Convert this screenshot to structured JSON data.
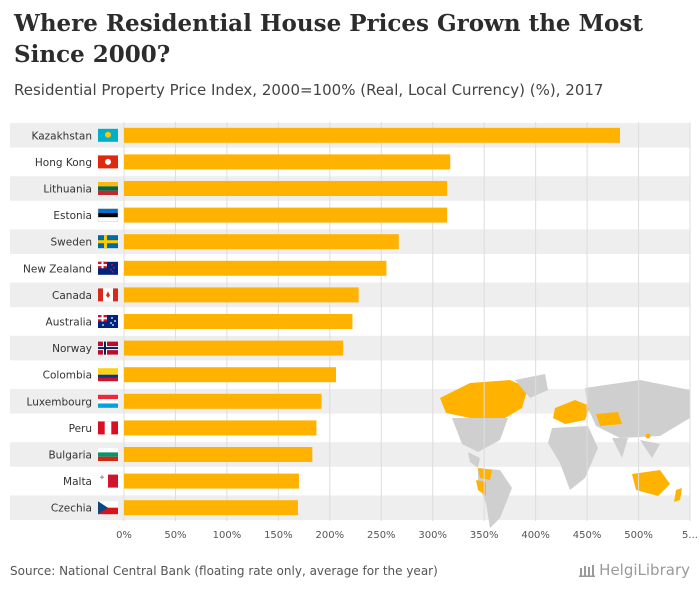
{
  "title": "Where Residential House Prices Grown the Most Since 2000?",
  "subtitle": "Residential Property Price Index, 2000=100% (Real, Local Currency) (%), 2017",
  "source": "Source: National Central Bank (floating rate only, average for the year)",
  "brand": "HelgiLibrary",
  "colors": {
    "bar": "#ffb300",
    "band": "#eeeeee",
    "grid": "#dddddd",
    "map_land": "#cfcfcf",
    "map_highlight": "#ffb300"
  },
  "chart_data": {
    "type": "bar",
    "orientation": "horizontal",
    "categories": [
      "Kazakhstan",
      "Hong Kong",
      "Lithuania",
      "Estonia",
      "Sweden",
      "New Zealand",
      "Canada",
      "Australia",
      "Norway",
      "Colombia",
      "Luxembourg",
      "Peru",
      "Bulgaria",
      "Malta",
      "Czechia"
    ],
    "values": [
      482,
      317,
      314,
      314,
      267,
      255,
      228,
      222,
      213,
      206,
      192,
      187,
      183,
      170,
      169
    ],
    "xlim": [
      0,
      550
    ],
    "xticks": [
      "0%",
      "50%",
      "100%",
      "150%",
      "200%",
      "250%",
      "300%",
      "350%",
      "400%",
      "450%",
      "500%",
      "5..."
    ],
    "xtick_values": [
      0,
      50,
      100,
      150,
      200,
      250,
      300,
      350,
      400,
      450,
      500,
      550
    ],
    "grid": true,
    "legend": "none",
    "flags": [
      "flag-kazakhstan",
      "flag-hong-kong",
      "flag-lithuania",
      "flag-estonia",
      "flag-sweden",
      "flag-new-zealand",
      "flag-canada",
      "flag-australia",
      "flag-norway",
      "flag-colombia",
      "flag-luxembourg",
      "flag-peru",
      "flag-bulgaria",
      "flag-malta",
      "flag-czechia"
    ]
  }
}
